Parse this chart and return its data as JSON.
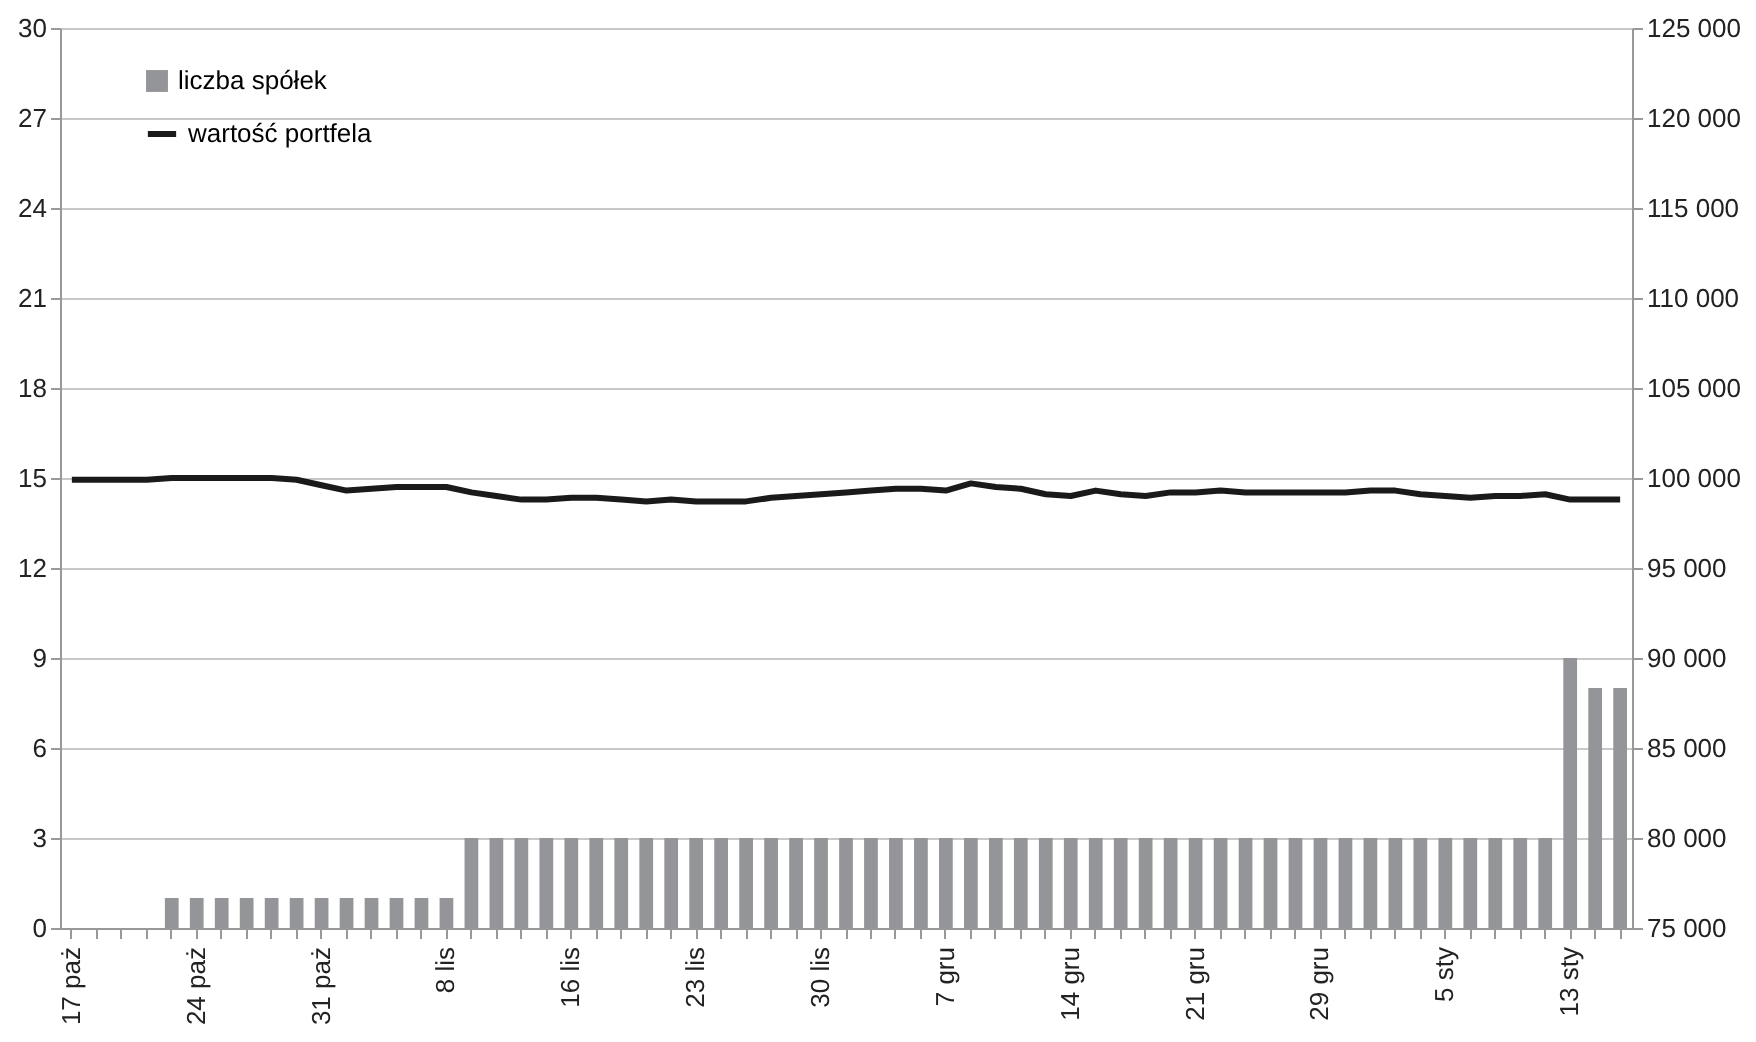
{
  "chart_data": {
    "type": "bar",
    "categories": [
      "17 paż",
      null,
      null,
      null,
      null,
      "24 paż",
      null,
      null,
      null,
      null,
      "31 paż",
      null,
      null,
      null,
      null,
      "8 lis",
      null,
      null,
      null,
      null,
      "16 lis",
      null,
      null,
      null,
      null,
      "23 lis",
      null,
      null,
      null,
      null,
      "30 lis",
      null,
      null,
      null,
      null,
      "7 gru",
      null,
      null,
      null,
      null,
      "14 gru",
      null,
      null,
      null,
      null,
      "21 gru",
      null,
      null,
      null,
      null,
      "29 gru",
      null,
      null,
      null,
      null,
      "5 sty",
      null,
      null,
      null,
      null,
      "13 sty",
      null,
      null
    ],
    "series": [
      {
        "name": "liczba spółek",
        "color": "#939598",
        "values": [
          0,
          0,
          0,
          0,
          1,
          1,
          1,
          1,
          1,
          1,
          1,
          1,
          1,
          1,
          1,
          1,
          3,
          3,
          3,
          3,
          3,
          3,
          3,
          3,
          3,
          3,
          3,
          3,
          3,
          3,
          3,
          3,
          3,
          3,
          3,
          3,
          3,
          3,
          3,
          3,
          3,
          3,
          3,
          3,
          3,
          3,
          3,
          3,
          3,
          3,
          3,
          3,
          3,
          3,
          3,
          3,
          3,
          3,
          3,
          3,
          9,
          8,
          8
        ]
      },
      {
        "name": "wartość portfela",
        "type": "line",
        "axis": "y2",
        "color": "#1a1a1a",
        "values": [
          99900,
          99900,
          99900,
          99900,
          100000,
          100000,
          100000,
          100000,
          100000,
          99900,
          99600,
          99300,
          99400,
          99500,
          99500,
          99500,
          99200,
          99000,
          98800,
          98800,
          98900,
          98900,
          98800,
          98700,
          98800,
          98700,
          98700,
          98700,
          98900,
          99000,
          99100,
          99200,
          99300,
          99400,
          99400,
          99300,
          99700,
          99500,
          99400,
          99100,
          99000,
          99300,
          99100,
          99000,
          99200,
          99200,
          99300,
          99200,
          99200,
          99200,
          99200,
          99200,
          99300,
          99300,
          99100,
          99000,
          98900,
          99000,
          99000,
          99100,
          98800,
          98800,
          98800
        ]
      }
    ],
    "ylim": [
      0,
      30
    ],
    "yticks": [
      0,
      3,
      6,
      9,
      12,
      15,
      18,
      21,
      24,
      27,
      30
    ],
    "y2lim": [
      75000,
      125000
    ],
    "y2ticks": [
      {
        "value": 75000,
        "label": "75 000"
      },
      {
        "value": 80000,
        "label": "80 000"
      },
      {
        "value": 85000,
        "label": "85 000"
      },
      {
        "value": 90000,
        "label": "90 000"
      },
      {
        "value": 95000,
        "label": "95 000"
      },
      {
        "value": 100000,
        "label": "100 000"
      },
      {
        "value": 105000,
        "label": "105 000"
      },
      {
        "value": 110000,
        "label": "110 000"
      },
      {
        "value": 115000,
        "label": "115 000"
      },
      {
        "value": 120000,
        "label": "120 000"
      },
      {
        "value": 125000,
        "label": "125 000"
      }
    ],
    "grid": "y",
    "legend": "top left"
  }
}
